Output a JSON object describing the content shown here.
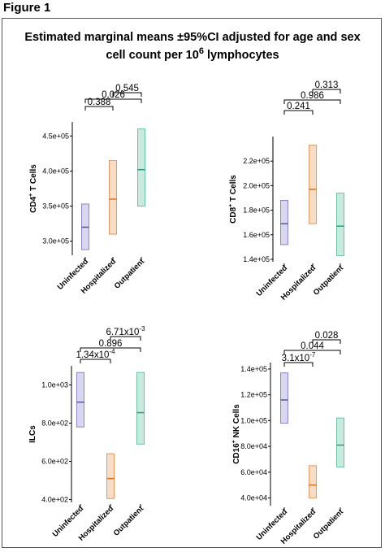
{
  "figure_label": "Figure 1",
  "title_line1": "Estimated marginal means ±95%CI adjusted for age and sex",
  "title_line2_prefix": "cell count per 10",
  "title_line2_sup": "6",
  "title_line2_suffix": " lymphocytes",
  "colors": {
    "Uninfected": {
      "fill": "#d9d6ef",
      "stroke": "#8c86c4",
      "line": "#5a54a0"
    },
    "Hospitalized": {
      "fill": "#f7dcc6",
      "stroke": "#e29a62",
      "line": "#d9701e"
    },
    "Outpatient": {
      "fill": "#c9eadf",
      "stroke": "#6cc2a6",
      "line": "#2f9c7c"
    }
  },
  "chart_data": [
    {
      "type": "box",
      "ylabel": "CD4",
      "ylabel_sup": "+",
      "ylabel_suffix": " T Cells",
      "categories": [
        "Uninfected",
        "Hospitalized",
        "Outpatient"
      ],
      "mean": [
        320000,
        360000,
        402000
      ],
      "lower": [
        288000,
        310000,
        350000
      ],
      "upper": [
        353000,
        415000,
        460000
      ],
      "ylim": [
        280000,
        470000
      ],
      "yticks": [
        300000,
        350000,
        400000,
        450000
      ],
      "yticklabels": [
        "3.0e+05",
        "3.5e+05",
        "4.0e+05",
        "4.5e+05"
      ],
      "pvalues": [
        {
          "from": 0,
          "to": 1,
          "label": "0.388"
        },
        {
          "from": 0,
          "to": 2,
          "label": "0.026"
        },
        {
          "from": 1,
          "to": 2,
          "label": "0.545"
        }
      ]
    },
    {
      "type": "box",
      "ylabel": "CD8",
      "ylabel_sup": "+",
      "ylabel_suffix": " T Cells",
      "categories": [
        "Uninfected",
        "Hospitalized",
        "Outpatient"
      ],
      "mean": [
        169000,
        197000,
        167000
      ],
      "lower": [
        152000,
        169000,
        143000
      ],
      "upper": [
        188000,
        233000,
        194000
      ],
      "ylim": [
        138000,
        240000
      ],
      "yticks": [
        140000,
        160000,
        180000,
        200000,
        220000
      ],
      "yticklabels": [
        "1.4e+05",
        "1.6e+05",
        "1.8e+05",
        "2.0e+05",
        "2.2e+05"
      ],
      "pvalues": [
        {
          "from": 0,
          "to": 1,
          "label": "0.241"
        },
        {
          "from": 0,
          "to": 2,
          "label": "0.986"
        },
        {
          "from": 1,
          "to": 2,
          "label": "0.313"
        }
      ]
    },
    {
      "type": "box",
      "ylabel": "ILCs",
      "ylabel_sup": "",
      "ylabel_suffix": "",
      "categories": [
        "Uninfected",
        "Hospitalized",
        "Outpatient"
      ],
      "mean": [
        910,
        510,
        855
      ],
      "lower": [
        780,
        405,
        690
      ],
      "upper": [
        1065,
        640,
        1065
      ],
      "ylim": [
        385,
        1100
      ],
      "yticks": [
        400,
        600,
        800,
        1000
      ],
      "yticklabels": [
        "4.0e+02",
        "6.0e+02",
        "8.0e+02",
        "1.0e+03"
      ],
      "pvalues": [
        {
          "from": 0,
          "to": 1,
          "label": "1.34x10",
          "sup": "-4"
        },
        {
          "from": 0,
          "to": 2,
          "label": "0.896",
          "sup": ""
        },
        {
          "from": 1,
          "to": 2,
          "label": "6.71x10",
          "sup": "-3"
        }
      ]
    },
    {
      "type": "box",
      "ylabel": "CD16",
      "ylabel_sup": "+",
      "ylabel_suffix": " NK Cells",
      "categories": [
        "Uninfected",
        "Hospitalized",
        "Outpatient"
      ],
      "mean": [
        116000,
        50000,
        81000
      ],
      "lower": [
        98000,
        40000,
        64000
      ],
      "upper": [
        137000,
        65000,
        102000
      ],
      "ylim": [
        34000,
        145000
      ],
      "yticks": [
        40000,
        60000,
        80000,
        100000,
        120000,
        140000
      ],
      "yticklabels": [
        "4.0e+04",
        "6.0e+04",
        "8.0e+04",
        "1.0e+05",
        "1.2e+05",
        "1.4e+05"
      ],
      "pvalues": [
        {
          "from": 0,
          "to": 1,
          "label": "3.1x10",
          "sup": "-7"
        },
        {
          "from": 0,
          "to": 2,
          "label": "0.044",
          "sup": ""
        },
        {
          "from": 1,
          "to": 2,
          "label": "0.028",
          "sup": ""
        }
      ]
    }
  ]
}
